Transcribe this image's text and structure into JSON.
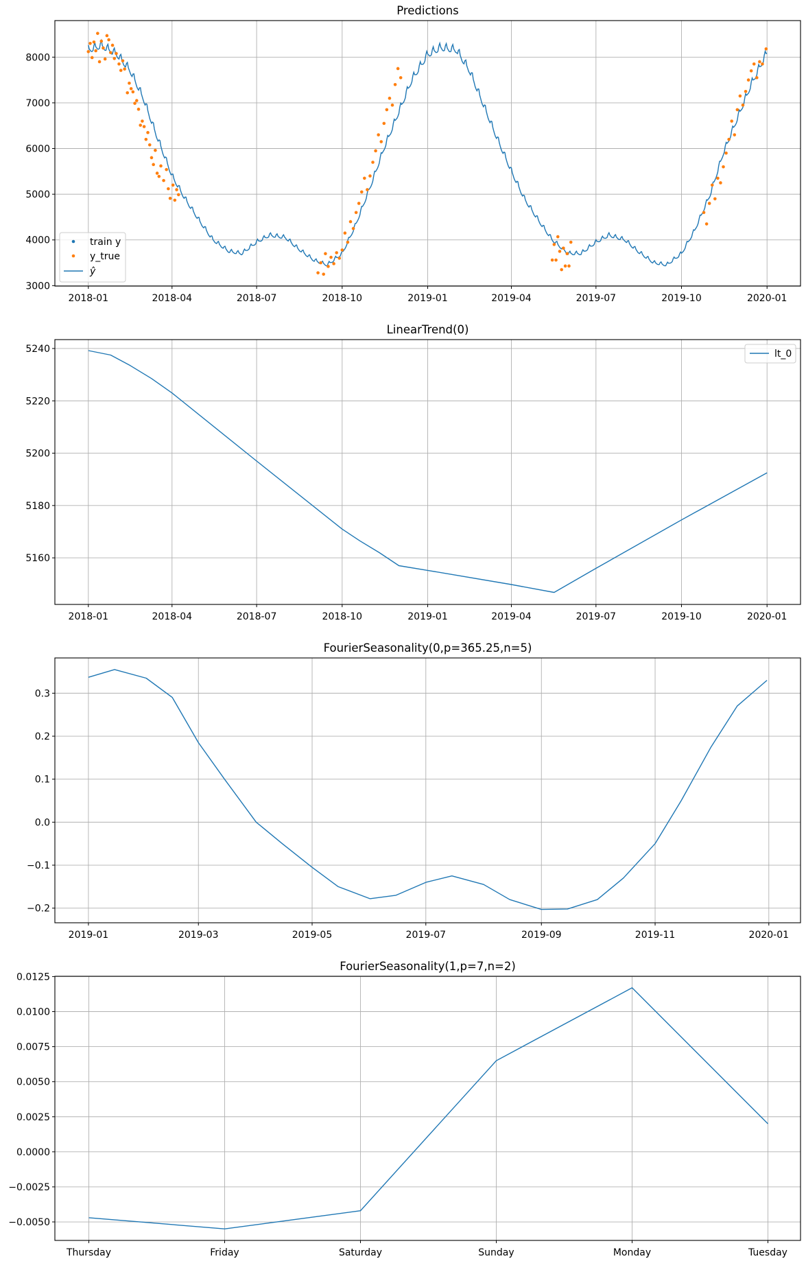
{
  "colors": {
    "train": "#1f77b4",
    "true": "#ff7f0e",
    "line": "#1f77b4",
    "grid": "#b0b0b0"
  },
  "chart_data": [
    {
      "type": "line",
      "title": "Predictions",
      "xlim": [
        "2017-11-26",
        "2020-02-06"
      ],
      "ylim": [
        2990,
        8800
      ],
      "grid": true,
      "legend_placement": "lower-left",
      "x_ticks": [
        "2018-01",
        "2018-04",
        "2018-07",
        "2018-10",
        "2019-01",
        "2019-04",
        "2019-07",
        "2019-10",
        "2020-01"
      ],
      "y_ticks": [
        3000,
        4000,
        5000,
        6000,
        7000,
        8000
      ],
      "legend": [
        "train y",
        "y_true",
        "ŷ"
      ],
      "yhat": [
        [
          "2018-01-01",
          8150
        ],
        [
          "2018-01-15",
          8250
        ],
        [
          "2018-02-01",
          8050
        ],
        [
          "2018-02-15",
          7700
        ],
        [
          "2018-03-01",
          7100
        ],
        [
          "2018-03-15",
          6300
        ],
        [
          "2018-04-01",
          5400
        ],
        [
          "2018-04-15",
          4900
        ],
        [
          "2018-05-01",
          4400
        ],
        [
          "2018-05-15",
          4000
        ],
        [
          "2018-06-01",
          3750
        ],
        [
          "2018-06-15",
          3700
        ],
        [
          "2018-07-01",
          3950
        ],
        [
          "2018-07-15",
          4100
        ],
        [
          "2018-08-01",
          4050
        ],
        [
          "2018-08-15",
          3800
        ],
        [
          "2018-09-01",
          3550
        ],
        [
          "2018-09-15",
          3450
        ],
        [
          "2018-10-01",
          3700
        ],
        [
          "2018-10-15",
          4300
        ],
        [
          "2018-11-01",
          5200
        ],
        [
          "2018-11-15",
          6000
        ],
        [
          "2018-12-01",
          6800
        ],
        [
          "2018-12-15",
          7500
        ],
        [
          "2019-01-01",
          8050
        ],
        [
          "2019-01-15",
          8200
        ],
        [
          "2019-02-01",
          8150
        ],
        [
          "2019-02-15",
          7700
        ],
        [
          "2019-03-01",
          7000
        ],
        [
          "2019-03-15",
          6300
        ],
        [
          "2019-04-01",
          5500
        ],
        [
          "2019-04-15",
          4900
        ],
        [
          "2019-05-01",
          4400
        ],
        [
          "2019-05-15",
          4000
        ],
        [
          "2019-06-01",
          3700
        ],
        [
          "2019-06-15",
          3700
        ],
        [
          "2019-07-01",
          3950
        ],
        [
          "2019-07-15",
          4100
        ],
        [
          "2019-08-01",
          4000
        ],
        [
          "2019-08-15",
          3750
        ],
        [
          "2019-09-01",
          3500
        ],
        [
          "2019-09-15",
          3450
        ],
        [
          "2019-10-01",
          3700
        ],
        [
          "2019-10-15",
          4200
        ],
        [
          "2019-11-01",
          5000
        ],
        [
          "2019-11-15",
          5900
        ],
        [
          "2019-12-01",
          6700
        ],
        [
          "2019-12-15",
          7400
        ],
        [
          "2020-01-01",
          8100
        ]
      ],
      "y_true": [
        [
          "2018-01-01",
          8120
        ],
        [
          "2018-01-03",
          8300
        ],
        [
          "2018-01-05",
          7990
        ],
        [
          "2018-01-07",
          8330
        ],
        [
          "2018-01-09",
          8140
        ],
        [
          "2018-01-11",
          8520
        ],
        [
          "2018-01-13",
          7900
        ],
        [
          "2018-01-15",
          8350
        ],
        [
          "2018-01-17",
          8200
        ],
        [
          "2018-01-19",
          7960
        ],
        [
          "2018-01-21",
          8470
        ],
        [
          "2018-01-23",
          8380
        ],
        [
          "2018-01-25",
          8100
        ],
        [
          "2018-01-27",
          8260
        ],
        [
          "2018-01-29",
          7970
        ],
        [
          "2018-01-31",
          8080
        ],
        [
          "2018-02-03",
          7850
        ],
        [
          "2018-02-05",
          7710
        ],
        [
          "2018-02-07",
          7920
        ],
        [
          "2018-02-09",
          7740
        ],
        [
          "2018-02-12",
          7220
        ],
        [
          "2018-02-14",
          7430
        ],
        [
          "2018-02-16",
          7310
        ],
        [
          "2018-02-18",
          7240
        ],
        [
          "2018-02-20",
          6990
        ],
        [
          "2018-02-22",
          7050
        ],
        [
          "2018-02-24",
          6860
        ],
        [
          "2018-02-26",
          6510
        ],
        [
          "2018-02-28",
          6600
        ],
        [
          "2018-03-02",
          6480
        ],
        [
          "2018-03-04",
          6200
        ],
        [
          "2018-03-06",
          6350
        ],
        [
          "2018-03-08",
          6080
        ],
        [
          "2018-03-10",
          5800
        ],
        [
          "2018-03-12",
          5650
        ],
        [
          "2018-03-14",
          5960
        ],
        [
          "2018-03-16",
          5460
        ],
        [
          "2018-03-18",
          5390
        ],
        [
          "2018-03-20",
          5620
        ],
        [
          "2018-03-23",
          5300
        ],
        [
          "2018-03-26",
          5540
        ],
        [
          "2018-03-28",
          5120
        ],
        [
          "2018-03-30",
          4910
        ],
        [
          "2018-04-02",
          5200
        ],
        [
          "2018-04-04",
          4870
        ],
        [
          "2018-04-06",
          5100
        ],
        [
          "2018-04-08",
          4990
        ],
        [
          "2018-09-05",
          3280
        ],
        [
          "2018-09-08",
          3500
        ],
        [
          "2018-09-11",
          3250
        ],
        [
          "2018-09-13",
          3700
        ],
        [
          "2018-09-16",
          3420
        ],
        [
          "2018-09-19",
          3620
        ],
        [
          "2018-09-22",
          3480
        ],
        [
          "2018-09-25",
          3720
        ],
        [
          "2018-09-28",
          3600
        ],
        [
          "2018-10-01",
          3780
        ],
        [
          "2018-10-04",
          4150
        ],
        [
          "2018-10-07",
          3950
        ],
        [
          "2018-10-10",
          4400
        ],
        [
          "2018-10-13",
          4250
        ],
        [
          "2018-10-16",
          4600
        ],
        [
          "2018-10-19",
          4800
        ],
        [
          "2018-10-22",
          5050
        ],
        [
          "2018-10-25",
          5350
        ],
        [
          "2018-10-28",
          5100
        ],
        [
          "2018-10-31",
          5400
        ],
        [
          "2018-11-03",
          5700
        ],
        [
          "2018-11-06",
          5950
        ],
        [
          "2018-11-09",
          6300
        ],
        [
          "2018-11-12",
          6150
        ],
        [
          "2018-11-15",
          6550
        ],
        [
          "2018-11-18",
          6850
        ],
        [
          "2018-11-21",
          7100
        ],
        [
          "2018-11-24",
          6950
        ],
        [
          "2018-11-27",
          7400
        ],
        [
          "2018-11-30",
          7750
        ],
        [
          "2018-12-03",
          7550
        ],
        [
          "2019-05-15",
          3560
        ],
        [
          "2019-05-17",
          3900
        ],
        [
          "2019-05-19",
          3560
        ],
        [
          "2019-05-21",
          4070
        ],
        [
          "2019-05-23",
          3750
        ],
        [
          "2019-05-25",
          3350
        ],
        [
          "2019-05-27",
          3820
        ],
        [
          "2019-05-29",
          3430
        ],
        [
          "2019-05-31",
          3700
        ],
        [
          "2019-06-02",
          3430
        ],
        [
          "2019-06-04",
          3950
        ],
        [
          "2019-10-25",
          4600
        ],
        [
          "2019-10-28",
          4350
        ],
        [
          "2019-10-31",
          4800
        ],
        [
          "2019-11-03",
          5200
        ],
        [
          "2019-11-06",
          4900
        ],
        [
          "2019-11-09",
          5350
        ],
        [
          "2019-11-12",
          5250
        ],
        [
          "2019-11-15",
          5600
        ],
        [
          "2019-11-18",
          5900
        ],
        [
          "2019-11-21",
          6200
        ],
        [
          "2019-11-24",
          6600
        ],
        [
          "2019-11-27",
          6300
        ],
        [
          "2019-11-30",
          6850
        ],
        [
          "2019-12-03",
          7150
        ],
        [
          "2019-12-06",
          6950
        ],
        [
          "2019-12-09",
          7250
        ],
        [
          "2019-12-12",
          7500
        ],
        [
          "2019-12-15",
          7700
        ],
        [
          "2019-12-18",
          7850
        ],
        [
          "2019-12-21",
          7550
        ],
        [
          "2019-12-24",
          7900
        ],
        [
          "2019-12-27",
          7850
        ],
        [
          "2019-12-31",
          8180
        ]
      ]
    },
    {
      "type": "line",
      "title": "LinearTrend(0)",
      "xlim": [
        "2017-11-26",
        "2020-02-06"
      ],
      "ylim": [
        5142.2,
        5243.4
      ],
      "grid": true,
      "legend_placement": "top-right",
      "legend": [
        "lt_0"
      ],
      "x_ticks": [
        "2018-01",
        "2018-04",
        "2018-07",
        "2018-10",
        "2019-01",
        "2019-04",
        "2019-07",
        "2019-10",
        "2020-01"
      ],
      "y_ticks": [
        5160,
        5180,
        5200,
        5220,
        5240
      ],
      "points": [
        [
          "2018-01-01",
          5239.2
        ],
        [
          "2018-01-25",
          5237.5
        ],
        [
          "2018-02-15",
          5233.5
        ],
        [
          "2018-03-10",
          5228.5
        ],
        [
          "2018-04-01",
          5223
        ],
        [
          "2018-07-01",
          5197
        ],
        [
          "2018-10-01",
          5171
        ],
        [
          "2018-10-20",
          5166.5
        ],
        [
          "2018-11-10",
          5162
        ],
        [
          "2018-12-01",
          5157
        ],
        [
          "2019-01-01",
          5155.2
        ],
        [
          "2019-04-01",
          5149.8
        ],
        [
          "2019-05-17",
          5146.8
        ],
        [
          "2019-07-01",
          5156
        ],
        [
          "2019-10-01",
          5174.5
        ],
        [
          "2020-01-01",
          5192.5
        ]
      ]
    },
    {
      "type": "line",
      "title": "FourierSeasonality(0,p=365.25,n=5)",
      "xlim": [
        "2018-12-14",
        "2020-01-18"
      ],
      "ylim": [
        -0.234,
        0.382
      ],
      "grid": true,
      "x_ticks": [
        "2019-01",
        "2019-03",
        "2019-05",
        "2019-07",
        "2019-09",
        "2019-11",
        "2020-01"
      ],
      "y_ticks": [
        -0.2,
        -0.1,
        0.0,
        0.1,
        0.2,
        0.3
      ],
      "y_tick_labels": [
        "−0.2",
        "−0.1",
        "0.0",
        "0.1",
        "0.2",
        "0.3"
      ],
      "points": [
        [
          "2019-01-01",
          0.337
        ],
        [
          "2019-01-15",
          0.355
        ],
        [
          "2019-02-01",
          0.335
        ],
        [
          "2019-02-15",
          0.29
        ],
        [
          "2019-03-01",
          0.185
        ],
        [
          "2019-03-15",
          0.1
        ],
        [
          "2019-04-01",
          0.0
        ],
        [
          "2019-04-15",
          -0.05
        ],
        [
          "2019-05-01",
          -0.105
        ],
        [
          "2019-05-15",
          -0.15
        ],
        [
          "2019-06-01",
          -0.178
        ],
        [
          "2019-06-15",
          -0.17
        ],
        [
          "2019-07-01",
          -0.14
        ],
        [
          "2019-07-15",
          -0.125
        ],
        [
          "2019-08-01",
          -0.145
        ],
        [
          "2019-08-15",
          -0.18
        ],
        [
          "2019-09-01",
          -0.203
        ],
        [
          "2019-09-15",
          -0.202
        ],
        [
          "2019-10-01",
          -0.18
        ],
        [
          "2019-10-15",
          -0.13
        ],
        [
          "2019-11-01",
          -0.05
        ],
        [
          "2019-11-15",
          0.05
        ],
        [
          "2019-12-01",
          0.175
        ],
        [
          "2019-12-15",
          0.27
        ],
        [
          "2019-12-31",
          0.33
        ]
      ]
    },
    {
      "type": "line",
      "title": "FourierSeasonality(1,p=7,n=2)",
      "categories": [
        "Thursday",
        "Friday",
        "Saturday",
        "Sunday",
        "Monday",
        "Tuesday"
      ],
      "values": [
        -0.0047,
        -0.0055,
        -0.0042,
        0.0065,
        0.0117,
        0.002
      ],
      "ylim": [
        -0.00632,
        0.01252
      ],
      "grid": true,
      "y_ticks": [
        -0.005,
        -0.0025,
        0,
        0.0025,
        0.005,
        0.0075,
        0.01,
        0.0125
      ],
      "y_tick_labels": [
        "−0.0050",
        "−0.0025",
        "0.0000",
        "0.0025",
        "0.0050",
        "0.0075",
        "0.0100",
        "0.0125"
      ]
    }
  ]
}
